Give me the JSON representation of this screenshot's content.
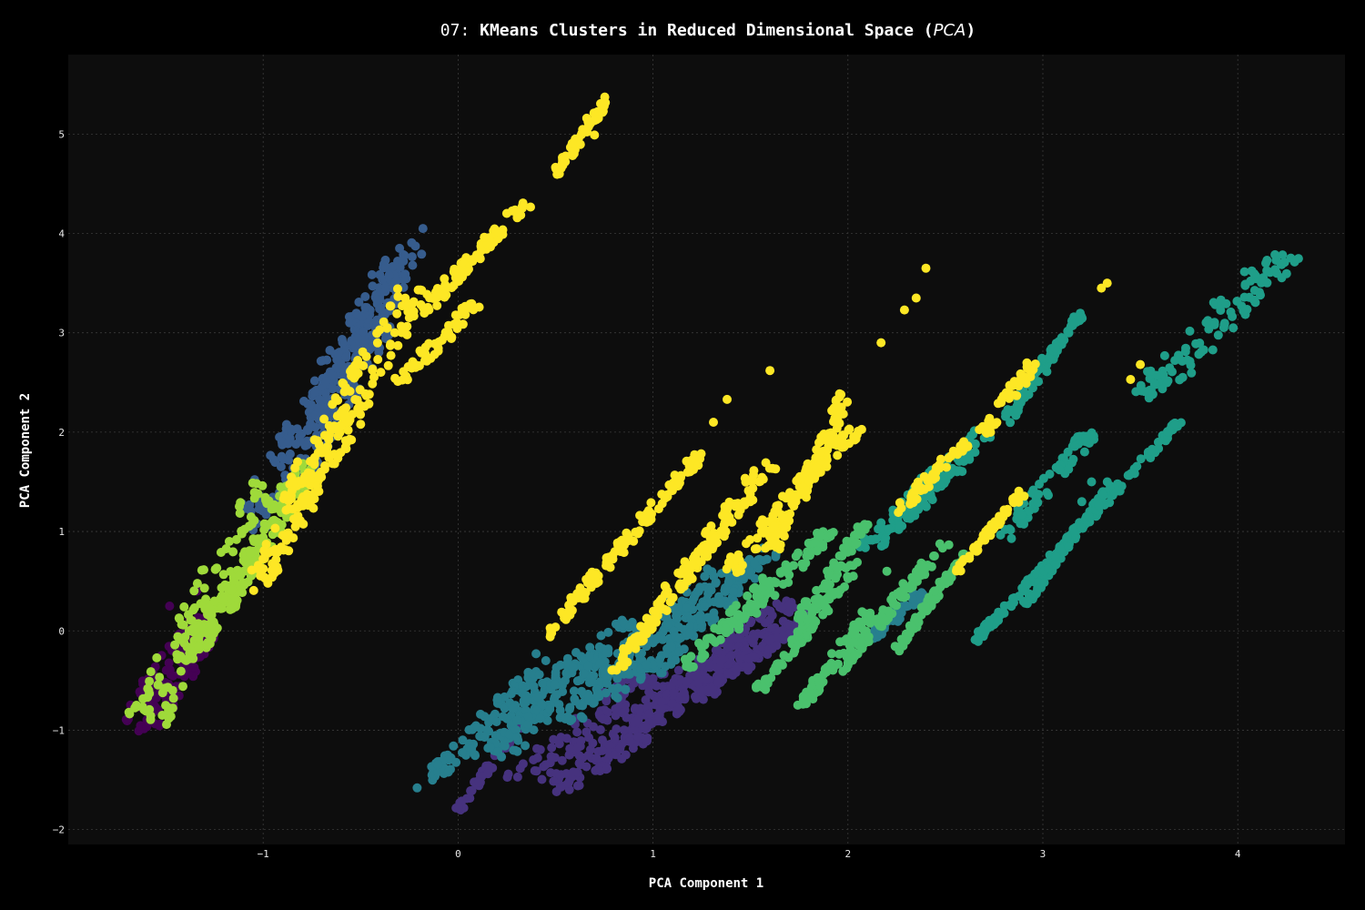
{
  "chart_data": {
    "type": "scatter",
    "title": "07: KMeans Clusters in Reduced Dimensional Space (PCA)",
    "title_prefix": "07: ",
    "title_main": "KMeans Clusters in Reduced Dimensional Space (",
    "title_italic": "PCA",
    "title_suffix": ")",
    "xlabel": "PCA Component 1",
    "ylabel": "PCA Component 2",
    "xlim": [
      -2.0,
      4.55
    ],
    "ylim": [
      -2.15,
      5.8
    ],
    "xticks": [
      -1,
      0,
      1,
      2,
      3,
      4
    ],
    "xtick_labels": [
      "−1",
      "0",
      "1",
      "2",
      "3",
      "4"
    ],
    "yticks": [
      -2,
      -1,
      0,
      1,
      2,
      3,
      4,
      5
    ],
    "ytick_labels": [
      "−2",
      "−1",
      "0",
      "1",
      "2",
      "3",
      "4",
      "5"
    ],
    "grid": true,
    "legend": "none",
    "background": "#0d0d0d",
    "figure_background": "#000000",
    "series": [
      {
        "cluster": 0,
        "color": "#440154",
        "segments": [
          {
            "x0": -1.67,
            "y0": -0.92,
            "x1": -1.32,
            "y1": 0.15,
            "spread": 0.07
          },
          {
            "x0": -1.6,
            "y0": -1.05,
            "x1": -1.28,
            "y1": -0.05,
            "spread": 0.05
          }
        ],
        "points": [
          [
            -1.34,
            0.4
          ],
          [
            -1.27,
            0.0
          ],
          [
            -1.48,
            0.25
          ],
          [
            -1.4,
            -0.35
          ]
        ]
      },
      {
        "cluster": 1,
        "color": "#46327e",
        "segments": [
          {
            "x0": 0.0,
            "y0": -1.8,
            "x1": 0.33,
            "y1": -0.9,
            "spread": 0.02
          },
          {
            "x0": 0.33,
            "y0": -1.5,
            "x1": 1.0,
            "y1": -0.4,
            "spread": 0.08
          },
          {
            "x0": 0.5,
            "y0": -1.6,
            "x1": 1.2,
            "y1": -0.4,
            "spread": 0.08
          },
          {
            "x0": 0.7,
            "y0": -1.4,
            "x1": 1.4,
            "y1": -0.3,
            "spread": 0.06
          },
          {
            "x0": 0.85,
            "y0": -1.1,
            "x1": 1.5,
            "y1": 0.1,
            "spread": 0.05
          },
          {
            "x0": 1.05,
            "y0": -0.8,
            "x1": 1.7,
            "y1": 0.3,
            "spread": 0.05
          },
          {
            "x0": 1.25,
            "y0": -0.7,
            "x1": 1.7,
            "y1": 0.1,
            "spread": 0.04
          },
          {
            "x0": 1.45,
            "y0": -0.4,
            "x1": 1.8,
            "y1": 0.2,
            "spread": 0.03
          }
        ],
        "points": []
      },
      {
        "cluster": 2,
        "color": "#365c8d",
        "segments": [
          {
            "x0": -1.1,
            "y0": 1.0,
            "x1": -0.3,
            "y1": 3.7,
            "spread": 0.09
          },
          {
            "x0": -0.95,
            "y0": 1.2,
            "x1": -0.4,
            "y1": 3.1,
            "spread": 0.08
          },
          {
            "x0": -0.75,
            "y0": 2.2,
            "x1": -0.2,
            "y1": 3.9,
            "spread": 0.06
          }
        ],
        "points": [
          [
            -0.18,
            4.05
          ],
          [
            -0.3,
            3.85
          ]
        ]
      },
      {
        "cluster": 3,
        "color": "#277f8e",
        "segments": [
          {
            "x0": -0.15,
            "y0": -1.5,
            "x1": 0.4,
            "y1": -0.4,
            "spread": 0.05
          },
          {
            "x0": 0.05,
            "y0": -1.3,
            "x1": 0.7,
            "y1": -0.2,
            "spread": 0.07
          },
          {
            "x0": 0.2,
            "y0": -1.25,
            "x1": 0.9,
            "y1": 0.1,
            "spread": 0.07
          },
          {
            "x0": 0.55,
            "y0": -0.9,
            "x1": 1.3,
            "y1": 0.6,
            "spread": 0.06
          },
          {
            "x0": 0.75,
            "y0": -0.7,
            "x1": 1.5,
            "y1": 0.7,
            "spread": 0.06
          },
          {
            "x0": 1.0,
            "y0": -0.4,
            "x1": 1.6,
            "y1": 0.8,
            "spread": 0.05
          },
          {
            "x0": 2.1,
            "y0": -0.1,
            "x1": 2.4,
            "y1": 0.4,
            "spread": 0.03
          }
        ],
        "points": [
          [
            -0.21,
            -1.58
          ],
          [
            0.4,
            -0.23
          ],
          [
            0.45,
            -0.3
          ]
        ]
      },
      {
        "cluster": 4,
        "color": "#1f9e89",
        "segments": [
          {
            "x0": 3.52,
            "y0": 2.35,
            "x1": 4.25,
            "y1": 3.8,
            "spread": 0.09
          },
          {
            "x0": 2.65,
            "y0": -0.1,
            "x1": 3.7,
            "y1": 2.1,
            "spread": 0.02
          },
          {
            "x0": 2.9,
            "y0": 0.25,
            "x1": 3.35,
            "y1": 1.5,
            "spread": 0.02
          },
          {
            "x0": 2.8,
            "y0": 0.95,
            "x1": 3.25,
            "y1": 2.0,
            "spread": 0.04
          },
          {
            "x0": 2.8,
            "y0": 2.1,
            "x1": 3.1,
            "y1": 2.9,
            "spread": 0.03
          },
          {
            "x0": 3.0,
            "y0": 2.7,
            "x1": 3.2,
            "y1": 3.2,
            "spread": 0.02
          },
          {
            "x0": 2.1,
            "y0": 0.8,
            "x1": 2.6,
            "y1": 1.8,
            "spread": 0.07
          },
          {
            "x0": 2.3,
            "y0": 1.2,
            "x1": 2.7,
            "y1": 2.0,
            "spread": 0.05
          }
        ],
        "points": [
          [
            4.15,
            3.73
          ],
          [
            4.2,
            3.6
          ],
          [
            3.2,
            1.3
          ],
          [
            3.25,
            1.5
          ]
        ]
      },
      {
        "cluster": 5,
        "color": "#4ac16d",
        "segments": [
          {
            "x0": 1.55,
            "y0": -0.6,
            "x1": 2.05,
            "y1": 0.7,
            "spread": 0.03
          },
          {
            "x0": 1.75,
            "y0": -0.8,
            "x1": 2.1,
            "y1": 0.2,
            "spread": 0.03
          },
          {
            "x0": 1.95,
            "y0": -0.4,
            "x1": 2.5,
            "y1": 0.9,
            "spread": 0.03
          },
          {
            "x0": 2.25,
            "y0": -0.2,
            "x1": 2.6,
            "y1": 0.8,
            "spread": 0.02
          },
          {
            "x0": 1.4,
            "y0": 0.0,
            "x1": 1.9,
            "y1": 1.0,
            "spread": 0.04
          },
          {
            "x0": 1.15,
            "y0": -0.4,
            "x1": 1.6,
            "y1": 0.5,
            "spread": 0.04
          },
          {
            "x0": 1.75,
            "y0": 0.1,
            "x1": 2.1,
            "y1": 1.1,
            "spread": 0.03
          }
        ],
        "points": [
          [
            1.9,
            0.2
          ],
          [
            2.2,
            0.6
          ]
        ]
      },
      {
        "cluster": 6,
        "color": "#9fda3a",
        "segments": [
          {
            "x0": -1.6,
            "y0": -0.9,
            "x1": -0.95,
            "y1": 1.5,
            "spread": 0.1
          },
          {
            "x0": -1.4,
            "y0": -0.3,
            "x1": -1.0,
            "y1": 0.9,
            "spread": 0.06
          },
          {
            "x0": -1.2,
            "y0": 0.2,
            "x1": -0.75,
            "y1": 1.7,
            "spread": 0.05
          }
        ],
        "points": [
          [
            -1.5,
            -0.75
          ],
          [
            -1.25,
            0.3
          ]
        ]
      },
      {
        "cluster": 7,
        "color": "#fde725",
        "segments": [
          {
            "x0": -0.85,
            "y0": 1.3,
            "x1": -0.2,
            "y1": 3.5,
            "spread": 0.08
          },
          {
            "x0": -1.05,
            "y0": 0.4,
            "x1": -0.5,
            "y1": 2.3,
            "spread": 0.06
          },
          {
            "x0": -0.2,
            "y0": 3.2,
            "x1": 0.35,
            "y1": 4.3,
            "spread": 0.04
          },
          {
            "x0": 0.5,
            "y0": 4.6,
            "x1": 0.8,
            "y1": 5.45,
            "spread": 0.02
          },
          {
            "x0": -0.3,
            "y0": 2.5,
            "x1": 0.1,
            "y1": 3.3,
            "spread": 0.04
          },
          {
            "x0": 0.45,
            "y0": -0.05,
            "x1": 1.25,
            "y1": 1.8,
            "spread": 0.03
          },
          {
            "x0": 0.8,
            "y0": -0.4,
            "x1": 1.3,
            "y1": 0.9,
            "spread": 0.03
          },
          {
            "x0": 1.1,
            "y0": 0.4,
            "x1": 1.6,
            "y1": 1.7,
            "spread": 0.05
          },
          {
            "x0": 1.4,
            "y0": 0.6,
            "x1": 2.05,
            "y1": 2.1,
            "spread": 0.05
          },
          {
            "x0": 1.6,
            "y0": 0.8,
            "x1": 2.0,
            "y1": 2.4,
            "spread": 0.04
          },
          {
            "x0": 2.25,
            "y0": 1.2,
            "x1": 2.6,
            "y1": 1.9,
            "spread": 0.03
          },
          {
            "x0": 2.55,
            "y0": 0.6,
            "x1": 2.9,
            "y1": 1.4,
            "spread": 0.02
          },
          {
            "x0": 2.7,
            "y0": 2.0,
            "x1": 2.95,
            "y1": 2.7,
            "spread": 0.03
          }
        ],
        "points": [
          [
            2.4,
            3.65
          ],
          [
            2.35,
            3.35
          ],
          [
            2.29,
            3.23
          ],
          [
            2.17,
            2.9
          ],
          [
            3.3,
            3.45
          ],
          [
            3.33,
            3.5
          ],
          [
            3.5,
            2.68
          ],
          [
            3.45,
            2.53
          ],
          [
            1.38,
            2.33
          ],
          [
            1.6,
            2.62
          ],
          [
            1.31,
            2.1
          ],
          [
            0.7,
            4.99
          ],
          [
            0.66,
            5.16
          ]
        ]
      }
    ]
  }
}
